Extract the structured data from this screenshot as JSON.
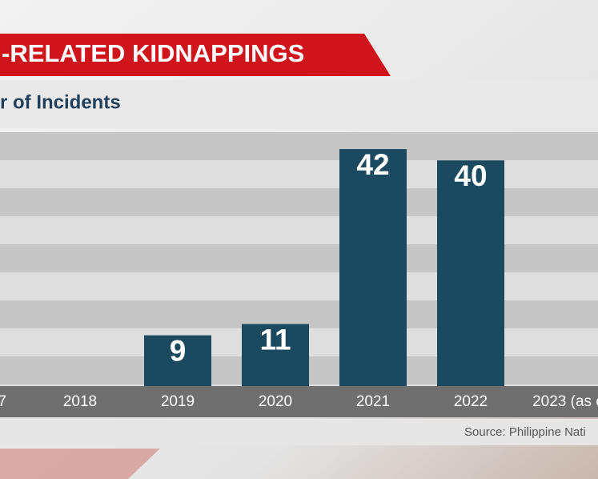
{
  "chart_data": {
    "type": "bar",
    "title": "-RELATED KIDNAPPINGS",
    "subtitle": "r of Incidents",
    "source": "Source: Philippine Nati",
    "categories": [
      "7",
      "2018",
      "2019",
      "2020",
      "2021",
      "2022",
      "2023 (as o"
    ],
    "values": [
      null,
      null,
      9,
      11,
      42,
      40,
      null
    ],
    "color": "#1b4a60",
    "ylim": [
      0,
      45
    ]
  }
}
